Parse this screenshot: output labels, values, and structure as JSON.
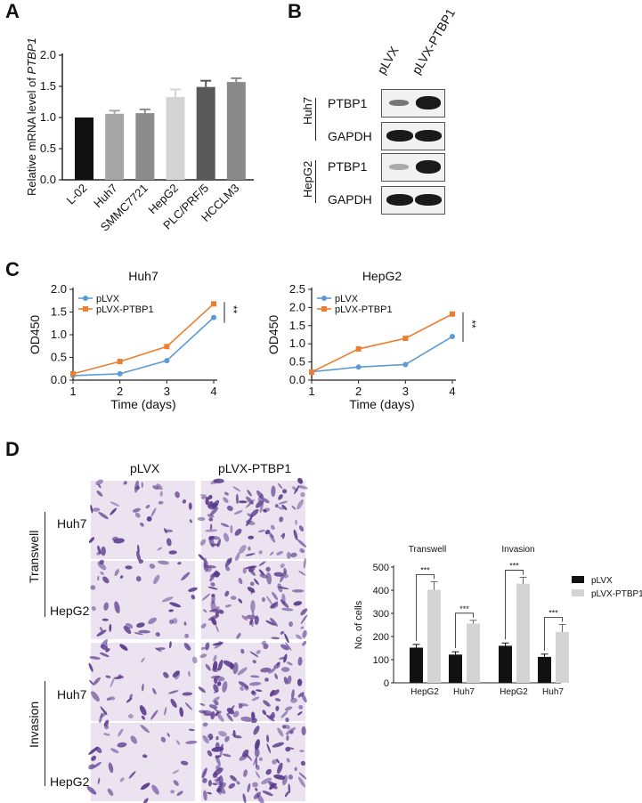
{
  "figure": {
    "panels": {
      "a": "A",
      "b": "B",
      "c": "C",
      "d": "D"
    }
  },
  "panel_b": {
    "lanes": [
      "pLVX",
      "pLVX-PTBP1"
    ],
    "groups": [
      {
        "name": "Huh7",
        "rows": [
          "PTBP1",
          "GAPDH"
        ]
      },
      {
        "name": "HepG2",
        "rows": [
          "PTBP1",
          "GAPDH"
        ]
      }
    ]
  },
  "panel_d": {
    "columns": [
      "pLVX",
      "pLVX-PTBP1"
    ],
    "groups": [
      {
        "name": "Transwell",
        "rows": [
          "Huh7",
          "HepG2"
        ]
      },
      {
        "name": "Invasion",
        "rows": [
          "Huh7",
          "HepG2"
        ]
      }
    ]
  },
  "colors": {
    "pLVX_line": "#5b9bd5",
    "PTBP1_line": "#ed7d31",
    "bar_dark": "#111111",
    "bar_light": "#d4d4d4",
    "stain_bg": "#ebe3f0",
    "stain": "#5a3a8c"
  },
  "chart_data": [
    {
      "id": "A",
      "type": "bar",
      "ylabel_prefix": "Relative mRNA level of ",
      "ylabel_italic": "PTBP1",
      "ylim": [
        0,
        2.0
      ],
      "yticks": [
        "0.0",
        "0.5",
        "1.0",
        "1.5",
        "2.0"
      ],
      "categories": [
        "L-02",
        "Huh7",
        "SMMC7721",
        "HepG2",
        "PLC/PRF/5",
        "HCCLM3"
      ],
      "values": [
        1.0,
        1.06,
        1.07,
        1.33,
        1.49,
        1.57
      ],
      "errors": [
        0.0,
        0.05,
        0.06,
        0.12,
        0.1,
        0.06
      ],
      "colors": [
        "#111111",
        "#a6a6a6",
        "#8c8c8c",
        "#d4d4d4",
        "#595959",
        "#8a8a8a"
      ]
    },
    {
      "id": "C1",
      "type": "line",
      "title": "Huh7",
      "xlabel": "Time (days)",
      "ylabel": "OD450",
      "x": [
        1,
        2,
        3,
        4
      ],
      "xticks": [
        "1",
        "2",
        "3",
        "4"
      ],
      "ylim": [
        0,
        2.0
      ],
      "yticks": [
        "0.0",
        "0.5",
        "1.0",
        "1.5",
        "2.0"
      ],
      "series": [
        {
          "name": "pLVX",
          "values": [
            0.1,
            0.14,
            0.43,
            1.38
          ],
          "errors": [
            0.02,
            0.02,
            0.03,
            0.04
          ]
        },
        {
          "name": "pLVX-PTBP1",
          "values": [
            0.14,
            0.41,
            0.74,
            1.68
          ],
          "errors": [
            0.02,
            0.02,
            0.03,
            0.05
          ]
        }
      ],
      "significance": "**"
    },
    {
      "id": "C2",
      "type": "line",
      "title": "HepG2",
      "xlabel": "Time (days)",
      "ylabel": "OD450",
      "x": [
        1,
        2,
        3,
        4
      ],
      "xticks": [
        "1",
        "2",
        "3",
        "4"
      ],
      "ylim": [
        0,
        2.5
      ],
      "yticks": [
        "0.0",
        "0.5",
        "1.0",
        "1.5",
        "2.0",
        "2.5"
      ],
      "series": [
        {
          "name": "pLVX",
          "values": [
            0.23,
            0.36,
            0.43,
            1.2
          ],
          "errors": [
            0.02,
            0.02,
            0.03,
            0.06
          ]
        },
        {
          "name": "pLVX-PTBP1",
          "values": [
            0.22,
            0.86,
            1.15,
            1.82
          ],
          "errors": [
            0.02,
            0.03,
            0.03,
            0.07
          ]
        }
      ],
      "significance": "**"
    },
    {
      "id": "D",
      "type": "bar",
      "ylabel": "No. of cells",
      "ylim": [
        0,
        500
      ],
      "yticks": [
        "0",
        "100",
        "200",
        "300",
        "400",
        "500"
      ],
      "section_titles": [
        "Transwell",
        "Invasion"
      ],
      "categories": [
        "HepG2",
        "Huh7",
        "HepG2",
        "Huh7"
      ],
      "series": [
        {
          "name": "pLVX",
          "values": [
            152,
            122,
            160,
            112
          ],
          "errors": [
            14,
            12,
            12,
            12
          ]
        },
        {
          "name": "pLVX-PTBP1",
          "values": [
            402,
            256,
            428,
            220
          ],
          "errors": [
            35,
            14,
            28,
            32
          ]
        }
      ],
      "significance": [
        "***",
        "***",
        "***",
        "***"
      ]
    }
  ]
}
